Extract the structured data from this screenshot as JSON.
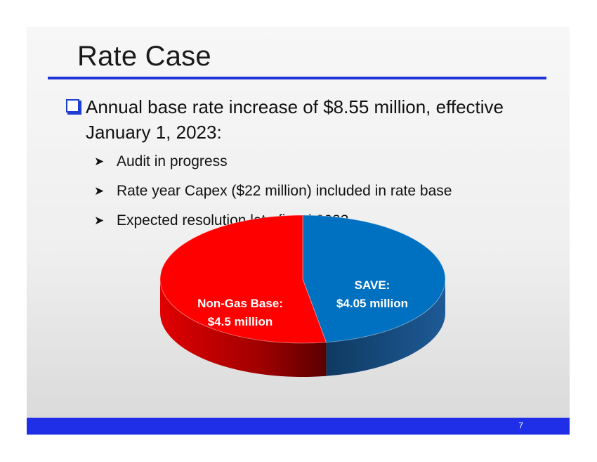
{
  "slide": {
    "title": "Rate Case",
    "bullet": "Annual base rate increase of $8.55 million, effective January 1, 2023:",
    "sub_bullets": [
      "Audit in progress",
      "Rate year Capex ($22 million) included in rate base",
      "Expected resolution late fiscal 2023"
    ],
    "page_number": "7"
  },
  "colors": {
    "title_rule": "#1f33d6",
    "footer_bar": "#1f2fe8",
    "non_gas": "#ff0000",
    "save": "#0070c0"
  },
  "chart_data": {
    "type": "pie",
    "style": "3d",
    "title": "",
    "total": 8.55,
    "slices": [
      {
        "label_line1": "SAVE:",
        "label_line2": "$4.05 million",
        "value": 4.05,
        "color": "#0070c0"
      },
      {
        "label_line1": "Non-Gas Base:",
        "label_line2": "$4.5 million",
        "value": 4.5,
        "color": "#ff0000"
      }
    ]
  }
}
